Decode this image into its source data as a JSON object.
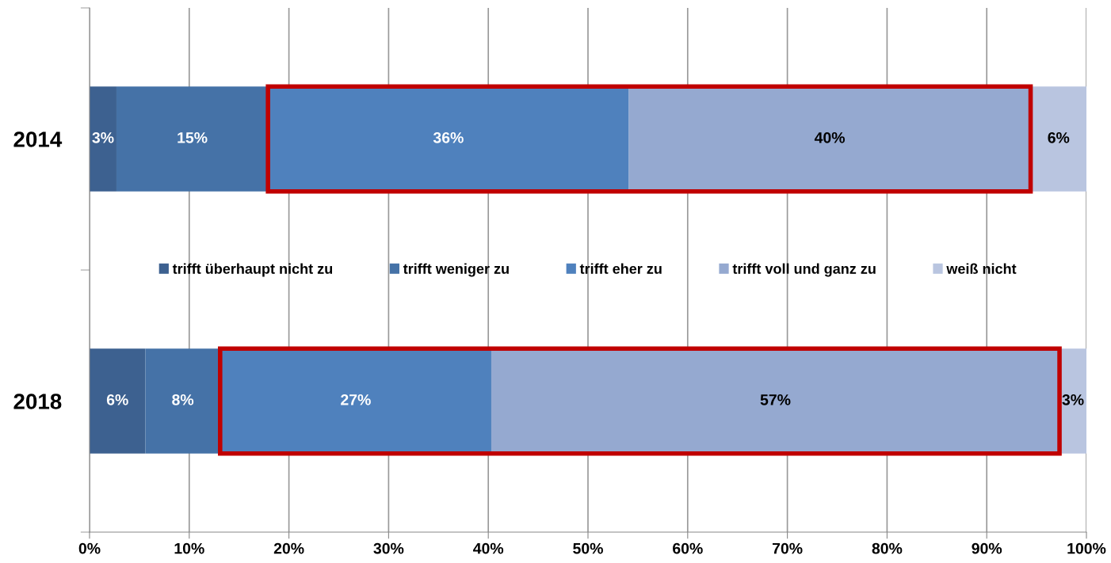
{
  "chart_data": {
    "type": "bar",
    "orientation": "horizontal",
    "stacked": true,
    "categories": [
      "2014",
      "2018"
    ],
    "series": [
      {
        "name": "trifft überhaupt nicht zu",
        "color": "#3d6190",
        "values": [
          2.7,
          5.6
        ],
        "value_labels": [
          "3%",
          "6%"
        ]
      },
      {
        "name": "trifft weniger zu",
        "color": "#4572a7",
        "values": [
          15.2,
          7.5
        ],
        "value_labels": [
          "15%",
          "8%"
        ]
      },
      {
        "name": "trifft eher zu",
        "color": "#4f81bd",
        "values": [
          36.2,
          27.2
        ],
        "value_labels": [
          "36%",
          "27%"
        ]
      },
      {
        "name": "trifft voll und ganz zu",
        "color": "#95a9d0",
        "values": [
          40.3,
          57.0
        ],
        "value_labels": [
          "40%",
          "57%"
        ]
      },
      {
        "name": "weiß nicht",
        "color": "#b9c5e0",
        "values": [
          5.6,
          2.7
        ],
        "value_labels": [
          "6%",
          "3%"
        ]
      }
    ],
    "xlim": [
      0,
      100
    ],
    "xticks": [
      {
        "value": 0,
        "label": "0%"
      },
      {
        "value": 10,
        "label": "10%"
      },
      {
        "value": 20,
        "label": "20%"
      },
      {
        "value": 30,
        "label": "30%"
      },
      {
        "value": 40,
        "label": "40%"
      },
      {
        "value": 50,
        "label": "50%"
      },
      {
        "value": 60,
        "label": "60%"
      },
      {
        "value": 70,
        "label": "70%"
      },
      {
        "value": 80,
        "label": "80%"
      },
      {
        "value": 90,
        "label": "90%"
      },
      {
        "value": 100,
        "label": "100%"
      }
    ],
    "grid": "x",
    "legend": "center"
  }
}
